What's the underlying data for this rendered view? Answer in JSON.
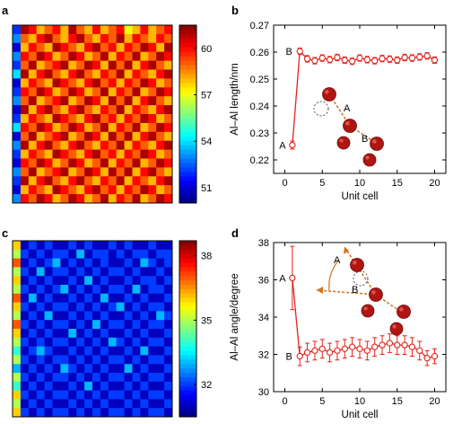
{
  "panels": {
    "a": {
      "label": "a"
    },
    "b": {
      "label": "b"
    },
    "c": {
      "label": "c"
    },
    "d": {
      "label": "d"
    }
  },
  "chart_data": [
    {
      "panel": "a",
      "type": "heatmap",
      "rows": 20,
      "cols": 20,
      "colorbar": {
        "ticks": [
          "60",
          "57",
          "54",
          "51"
        ],
        "range": [
          50,
          61.5
        ],
        "colormap": "jet"
      },
      "first_column": [
        52,
        53,
        51,
        53,
        52,
        54,
        51,
        52,
        53,
        51,
        52,
        54,
        51,
        53,
        52,
        51,
        53,
        52,
        51,
        53
      ],
      "grid": [
        [
          61,
          60,
          58,
          59,
          60,
          58,
          61,
          59,
          58,
          60,
          58,
          59,
          60,
          57,
          58,
          60,
          58,
          59,
          60
        ],
        [
          59,
          58,
          60,
          61,
          59,
          58,
          60,
          61,
          59,
          58,
          60,
          59,
          61,
          58,
          60,
          59,
          58,
          60,
          59
        ],
        [
          58,
          60,
          59,
          58,
          61,
          60,
          59,
          58,
          60,
          61,
          59,
          60,
          58,
          60,
          59,
          61,
          60,
          58,
          61
        ],
        [
          60,
          59,
          61,
          60,
          58,
          59,
          61,
          60,
          58,
          59,
          61,
          58,
          60,
          59,
          61,
          58,
          59,
          61,
          60
        ],
        [
          59,
          61,
          58,
          59,
          60,
          61,
          58,
          59,
          61,
          60,
          58,
          61,
          59,
          61,
          58,
          60,
          61,
          59,
          58
        ],
        [
          61,
          58,
          60,
          61,
          59,
          58,
          60,
          61,
          59,
          58,
          60,
          59,
          61,
          58,
          60,
          59,
          58,
          60,
          61
        ],
        [
          58,
          60,
          59,
          58,
          61,
          60,
          59,
          58,
          60,
          61,
          59,
          60,
          58,
          60,
          59,
          61,
          60,
          58,
          59
        ],
        [
          60,
          59,
          61,
          60,
          58,
          59,
          61,
          60,
          58,
          59,
          61,
          58,
          60,
          59,
          61,
          58,
          59,
          61,
          60
        ],
        [
          59,
          61,
          58,
          59,
          60,
          61,
          58,
          59,
          61,
          60,
          58,
          61,
          59,
          61,
          58,
          60,
          61,
          59,
          58
        ],
        [
          61,
          58,
          60,
          61,
          59,
          58,
          60,
          61,
          59,
          58,
          60,
          59,
          61,
          58,
          60,
          59,
          58,
          60,
          61
        ],
        [
          58,
          60,
          59,
          58,
          61,
          60,
          59,
          58,
          60,
          61,
          59,
          60,
          58,
          60,
          59,
          61,
          60,
          58,
          59
        ],
        [
          60,
          59,
          61,
          60,
          58,
          59,
          61,
          60,
          58,
          59,
          61,
          58,
          60,
          59,
          61,
          58,
          59,
          61,
          60
        ],
        [
          59,
          61,
          58,
          59,
          60,
          61,
          58,
          59,
          61,
          60,
          58,
          61,
          59,
          61,
          58,
          60,
          61,
          59,
          58
        ],
        [
          61,
          58,
          60,
          61,
          59,
          58,
          60,
          61,
          59,
          58,
          60,
          59,
          61,
          58,
          60,
          59,
          58,
          60,
          61
        ],
        [
          58,
          60,
          59,
          58,
          61,
          60,
          59,
          58,
          60,
          61,
          59,
          60,
          58,
          60,
          59,
          61,
          60,
          58,
          59
        ],
        [
          60,
          59,
          61,
          60,
          58,
          59,
          61,
          60,
          58,
          59,
          61,
          58,
          60,
          59,
          61,
          58,
          59,
          61,
          60
        ],
        [
          59,
          61,
          58,
          59,
          60,
          61,
          58,
          59,
          61,
          60,
          58,
          61,
          59,
          61,
          58,
          60,
          61,
          59,
          58
        ],
        [
          61,
          58,
          60,
          61,
          59,
          58,
          60,
          61,
          59,
          58,
          60,
          59,
          61,
          58,
          60,
          59,
          58,
          60,
          61
        ],
        [
          58,
          60,
          59,
          58,
          61,
          60,
          59,
          58,
          60,
          61,
          59,
          60,
          58,
          60,
          59,
          61,
          60,
          58,
          59
        ],
        [
          60,
          59,
          61,
          60,
          58,
          59,
          61,
          60,
          58,
          59,
          61,
          58,
          60,
          59,
          61,
          58,
          59,
          61,
          60
        ]
      ]
    },
    {
      "panel": "b",
      "type": "line",
      "xlabel": "Unit cell",
      "ylabel": "Al–Al length/nm",
      "xlim": [
        -1.5,
        21.5
      ],
      "ylim": [
        0.215,
        0.27
      ],
      "xticks": [
        "0",
        "5",
        "10",
        "15",
        "20"
      ],
      "yticks": [
        "0.22",
        "0.23",
        "0.24",
        "0.25",
        "0.26",
        "0.27"
      ],
      "point_labels": [
        "A",
        "B"
      ],
      "inset_labels": [
        "A",
        "B"
      ],
      "series": [
        {
          "x": [
            1,
            2,
            3,
            4,
            5,
            6,
            7,
            8,
            9,
            10,
            11,
            12,
            13,
            14,
            15,
            16,
            17,
            18,
            19,
            20
          ],
          "y": [
            0.2255,
            0.2603,
            0.2575,
            0.2568,
            0.2578,
            0.2572,
            0.258,
            0.257,
            0.2566,
            0.2578,
            0.2572,
            0.2568,
            0.2576,
            0.2574,
            0.257,
            0.258,
            0.2578,
            0.2582,
            0.2586,
            0.257
          ],
          "err": [
            0.0015,
            0.0012,
            0.0012,
            0.0012,
            0.0012,
            0.0012,
            0.0012,
            0.0012,
            0.0012,
            0.0012,
            0.0012,
            0.0012,
            0.0012,
            0.0012,
            0.0012,
            0.0012,
            0.0012,
            0.0012,
            0.0012,
            0.0012
          ]
        }
      ]
    },
    {
      "panel": "c",
      "type": "heatmap",
      "rows": 20,
      "cols": 20,
      "colorbar": {
        "ticks": [
          "38",
          "35",
          "32"
        ],
        "range": [
          30.5,
          38.7
        ],
        "colormap": "jet"
      },
      "first_column": [
        36,
        35,
        37,
        35,
        36,
        35,
        37,
        36,
        35,
        37,
        36,
        35,
        34,
        35,
        33,
        35,
        34,
        36,
        35,
        36
      ],
      "grid": [
        [
          31,
          32,
          31,
          32,
          31,
          31,
          32,
          31,
          32,
          31,
          31,
          32,
          31,
          32,
          31,
          31,
          32,
          31,
          31
        ],
        [
          32,
          31,
          32,
          31,
          32,
          32,
          31,
          33,
          31,
          32,
          32,
          31,
          32,
          31,
          32,
          32,
          31,
          32,
          32
        ],
        [
          31,
          32,
          31,
          32,
          33,
          31,
          32,
          31,
          32,
          31,
          32,
          31,
          31,
          32,
          31,
          33,
          32,
          31,
          32
        ],
        [
          32,
          31,
          33,
          31,
          32,
          32,
          31,
          32,
          31,
          32,
          31,
          32,
          32,
          31,
          32,
          31,
          31,
          32,
          31
        ],
        [
          31,
          32,
          31,
          32,
          31,
          31,
          32,
          31,
          33,
          31,
          32,
          31,
          31,
          32,
          31,
          32,
          32,
          31,
          32
        ],
        [
          32,
          31,
          32,
          31,
          32,
          33,
          31,
          32,
          31,
          32,
          31,
          32,
          32,
          31,
          33,
          31,
          32,
          32,
          31
        ],
        [
          31,
          33,
          31,
          32,
          31,
          31,
          32,
          31,
          32,
          31,
          33,
          31,
          31,
          32,
          31,
          32,
          31,
          31,
          32
        ],
        [
          32,
          31,
          32,
          31,
          32,
          32,
          31,
          32,
          31,
          32,
          31,
          32,
          33,
          31,
          32,
          31,
          32,
          32,
          31
        ],
        [
          31,
          32,
          31,
          33,
          31,
          31,
          32,
          31,
          32,
          31,
          32,
          31,
          31,
          32,
          31,
          32,
          31,
          33,
          32
        ],
        [
          32,
          31,
          32,
          31,
          32,
          32,
          31,
          32,
          31,
          33,
          31,
          32,
          32,
          31,
          32,
          31,
          32,
          32,
          31
        ],
        [
          31,
          32,
          31,
          32,
          31,
          31,
          33,
          31,
          32,
          31,
          32,
          31,
          31,
          32,
          31,
          32,
          31,
          31,
          32
        ],
        [
          32,
          31,
          32,
          31,
          32,
          32,
          31,
          32,
          31,
          32,
          31,
          33,
          32,
          31,
          32,
          31,
          32,
          32,
          31
        ],
        [
          31,
          32,
          33,
          32,
          31,
          31,
          32,
          31,
          32,
          31,
          32,
          31,
          31,
          32,
          31,
          33,
          31,
          31,
          32
        ],
        [
          32,
          31,
          32,
          31,
          32,
          32,
          31,
          32,
          31,
          32,
          31,
          32,
          32,
          31,
          32,
          31,
          32,
          32,
          31
        ],
        [
          31,
          32,
          31,
          32,
          31,
          33,
          32,
          31,
          32,
          31,
          32,
          31,
          31,
          33,
          31,
          32,
          31,
          31,
          32
        ],
        [
          32,
          31,
          32,
          31,
          32,
          32,
          31,
          32,
          31,
          32,
          31,
          32,
          32,
          31,
          32,
          31,
          32,
          32,
          31
        ],
        [
          31,
          32,
          31,
          32,
          31,
          31,
          32,
          31,
          33,
          31,
          32,
          31,
          31,
          32,
          31,
          32,
          31,
          31,
          32
        ],
        [
          32,
          31,
          32,
          31,
          32,
          32,
          31,
          32,
          31,
          32,
          31,
          32,
          32,
          31,
          32,
          31,
          32,
          32,
          31
        ],
        [
          31,
          32,
          31,
          32,
          31,
          31,
          32,
          31,
          32,
          31,
          32,
          31,
          31,
          32,
          31,
          32,
          31,
          31,
          32
        ],
        [
          32,
          31,
          32,
          31,
          32,
          32,
          31,
          32,
          31,
          32,
          31,
          32,
          32,
          31,
          32,
          31,
          32,
          32,
          31
        ]
      ]
    },
    {
      "panel": "d",
      "type": "line",
      "xlabel": "Unit cell",
      "ylabel": "Al–Al angle/degree",
      "xlim": [
        -1.5,
        21.5
      ],
      "ylim": [
        30,
        38
      ],
      "xticks": [
        "0",
        "5",
        "10",
        "15",
        "20"
      ],
      "yticks": [
        "30",
        "32",
        "34",
        "36",
        "38"
      ],
      "point_labels": [
        "A",
        "B"
      ],
      "inset_labels": [
        "A",
        "B"
      ],
      "series": [
        {
          "x": [
            1,
            2,
            3,
            4,
            5,
            6,
            7,
            8,
            9,
            10,
            11,
            12,
            13,
            14,
            15,
            16,
            17,
            18,
            19,
            20
          ],
          "y": [
            36.1,
            31.9,
            32.1,
            32.2,
            32.3,
            32.1,
            32.2,
            32.3,
            32.4,
            32.3,
            32.2,
            32.4,
            32.5,
            32.6,
            32.5,
            32.5,
            32.4,
            32.2,
            31.8,
            31.9
          ],
          "err": [
            1.7,
            0.5,
            0.5,
            0.5,
            0.5,
            0.5,
            0.5,
            0.5,
            0.5,
            0.5,
            0.5,
            0.5,
            0.5,
            0.5,
            0.5,
            0.5,
            0.5,
            0.5,
            0.4,
            0.4
          ]
        }
      ]
    }
  ]
}
